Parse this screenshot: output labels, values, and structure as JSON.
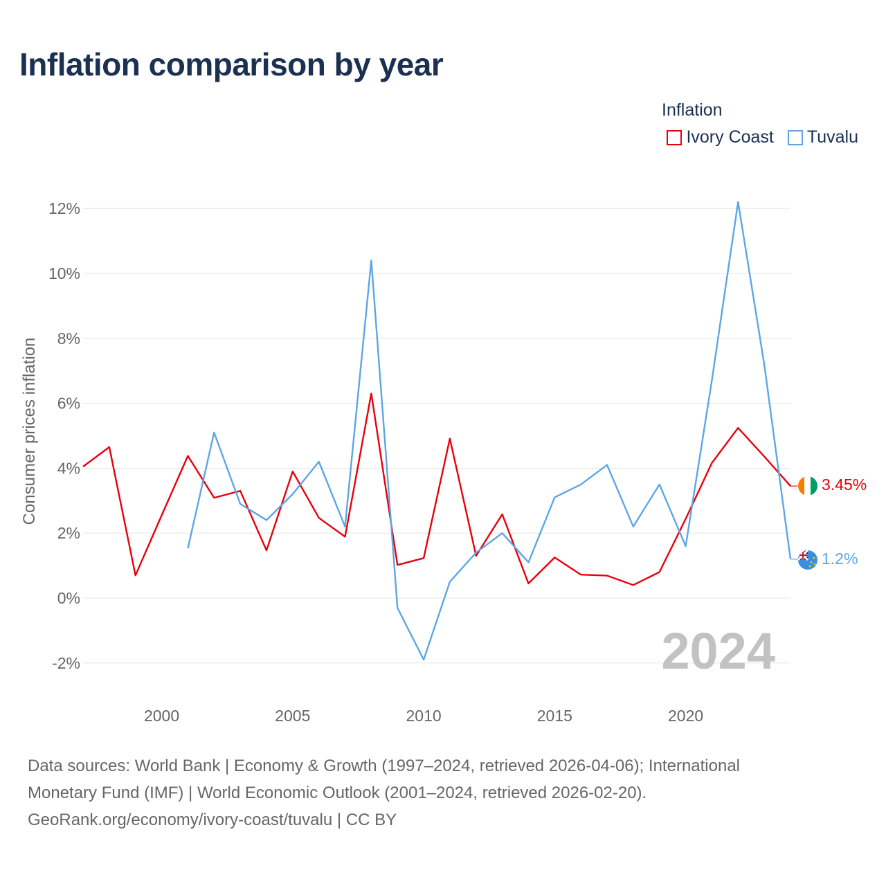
{
  "title": "Inflation comparison by year",
  "legend": {
    "title": "Inflation",
    "items": [
      {
        "label": "Ivory Coast",
        "color": "#e8000b"
      },
      {
        "label": "Tuvalu",
        "color": "#5ca6e6"
      }
    ]
  },
  "chart_data": {
    "type": "line",
    "title": "Inflation comparison by year",
    "ylabel": "Consumer prices inflation",
    "xlabel": "",
    "xlim": [
      1997,
      2024
    ],
    "ylim": [
      -3,
      13
    ],
    "x_ticks": [
      2000,
      2005,
      2010,
      2015,
      2020
    ],
    "y_ticks": [
      {
        "value": -2,
        "label": "-2%"
      },
      {
        "value": 0,
        "label": "0%"
      },
      {
        "value": 2,
        "label": "2%"
      },
      {
        "value": 4,
        "label": "4%"
      },
      {
        "value": 6,
        "label": "6%"
      },
      {
        "value": 8,
        "label": "8%"
      },
      {
        "value": 10,
        "label": "10%"
      },
      {
        "value": 12,
        "label": "12%"
      }
    ],
    "year_watermark": "2024",
    "series": [
      {
        "name": "Ivory Coast",
        "color": "#e8000b",
        "end_label": "3.45%",
        "x": [
          1997,
          1998,
          1999,
          2000,
          2001,
          2002,
          2003,
          2004,
          2005,
          2006,
          2007,
          2008,
          2009,
          2010,
          2011,
          2012,
          2013,
          2014,
          2015,
          2016,
          2017,
          2018,
          2019,
          2020,
          2021,
          2022,
          2023,
          2024
        ],
        "values": [
          4.05,
          4.65,
          0.7,
          2.55,
          4.38,
          3.09,
          3.3,
          1.47,
          3.9,
          2.47,
          1.89,
          6.3,
          1.02,
          1.23,
          4.91,
          1.3,
          2.58,
          0.45,
          1.25,
          0.72,
          0.69,
          0.4,
          0.8,
          2.44,
          4.16,
          5.24,
          4.36,
          3.45
        ]
      },
      {
        "name": "Tuvalu",
        "color": "#5ca6e6",
        "end_label": "1.2%",
        "x": [
          2001,
          2002,
          2003,
          2004,
          2005,
          2006,
          2007,
          2008,
          2009,
          2010,
          2011,
          2012,
          2013,
          2014,
          2015,
          2016,
          2017,
          2018,
          2019,
          2020,
          2021,
          2022,
          2023,
          2024
        ],
        "values": [
          1.53,
          5.1,
          2.9,
          2.4,
          3.2,
          4.2,
          2.2,
          10.4,
          -0.3,
          -1.9,
          0.5,
          1.4,
          2.0,
          1.1,
          3.1,
          3.5,
          4.1,
          2.2,
          3.5,
          1.6,
          6.7,
          12.2,
          7.2,
          1.2
        ]
      }
    ]
  },
  "footer": {
    "line1": "Data sources: World Bank | Economy & Growth (1997–2024, retrieved 2026-04-06); International",
    "line2": "Monetary Fund (IMF) | World Economic Outlook (2001–2024, retrieved 2026-02-20).",
    "line3": "GeoRank.org/economy/ivory-coast/tuvalu | CC BY"
  }
}
